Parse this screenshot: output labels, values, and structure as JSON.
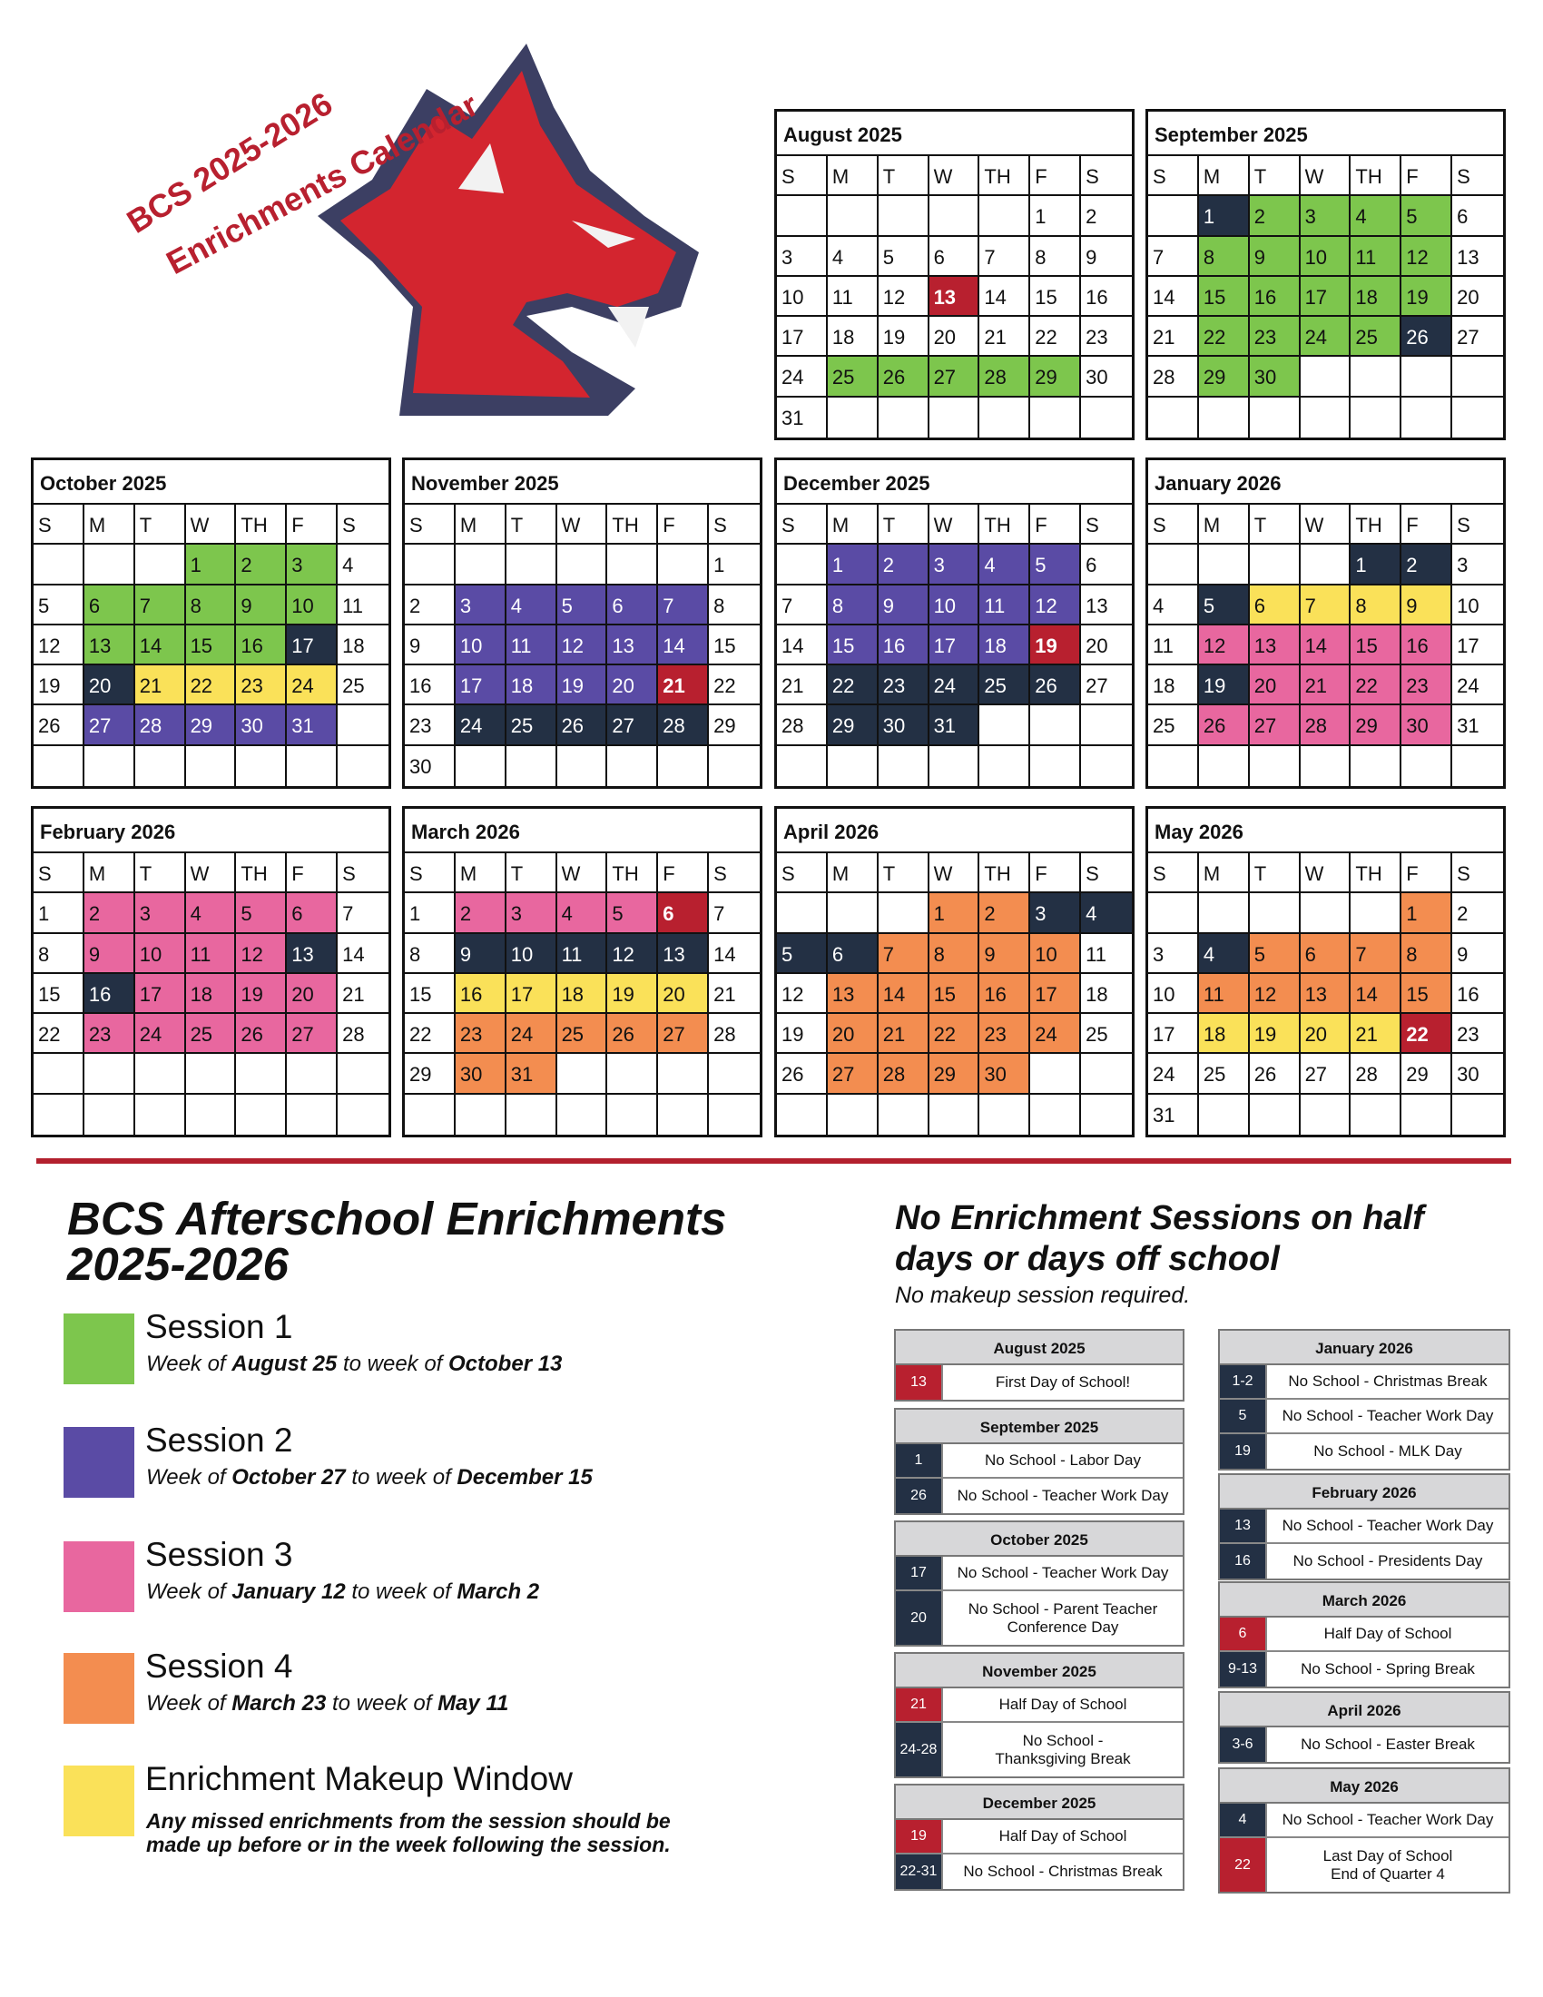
{
  "colors": {
    "green": "#7dc64d",
    "purple": "#5a4ba5",
    "pink": "#e8679f",
    "orange": "#f38d50",
    "yellow": "#fae159",
    "navy": "#233044",
    "red": "#b8202f",
    "logo_red": "#b8202f",
    "logo_navy": "#3c3f63"
  },
  "header": {
    "title_line1": "BCS 2025-2026",
    "title_line2": "Enrichments Calendar"
  },
  "calendars": [
    {
      "month": "August 2025",
      "days": [
        "S",
        "M",
        "T",
        "W",
        "TH",
        "F",
        "S"
      ],
      "start": 5,
      "length": 31,
      "colors": {
        "25": "green",
        "26": "green",
        "27": "green",
        "28": "green",
        "29": "green",
        "13": "red"
      }
    },
    {
      "month": "September 2025",
      "days": [
        "S",
        "M",
        "T",
        "W",
        "TH",
        "F",
        "S"
      ],
      "start": 1,
      "length": 30,
      "colors": {
        "1": "navy",
        "2": "green",
        "3": "green",
        "4": "green",
        "5": "green",
        "8": "green",
        "9": "green",
        "10": "green",
        "11": "green",
        "12": "green",
        "15": "green",
        "16": "green",
        "17": "green",
        "18": "green",
        "19": "green",
        "22": "green",
        "23": "green",
        "24": "green",
        "25": "green",
        "26": "navy",
        "29": "green",
        "30": "green"
      }
    },
    {
      "month": "October 2025",
      "days": [
        "S",
        "M",
        "T",
        "W",
        "TH",
        "F",
        "S"
      ],
      "start": 3,
      "length": 31,
      "colors": {
        "1": "green",
        "2": "green",
        "3": "green",
        "6": "green",
        "7": "green",
        "8": "green",
        "9": "green",
        "10": "green",
        "13": "green",
        "14": "green",
        "15": "green",
        "16": "green",
        "17": "navy",
        "20": "navy",
        "21": "yellow",
        "22": "yellow",
        "23": "yellow",
        "24": "yellow",
        "27": "purple",
        "28": "purple",
        "29": "purple",
        "30": "purple",
        "31": "purple"
      }
    },
    {
      "month": "November 2025",
      "days": [
        "S",
        "M",
        "T",
        "W",
        "TH",
        "F",
        "S"
      ],
      "start": 6,
      "length": 30,
      "colors": {
        "3": "purple",
        "4": "purple",
        "5": "purple",
        "6": "purple",
        "7": "purple",
        "10": "purple",
        "11": "purple",
        "12": "purple",
        "13": "purple",
        "14": "purple",
        "17": "purple",
        "18": "purple",
        "19": "purple",
        "20": "purple",
        "21": "red",
        "24": "navy",
        "25": "navy",
        "26": "navy",
        "27": "navy",
        "28": "navy"
      }
    },
    {
      "month": "December 2025",
      "days": [
        "S",
        "M",
        "T",
        "W",
        "TH",
        "F",
        "S"
      ],
      "start": 1,
      "length": 31,
      "colors": {
        "1": "purple",
        "2": "purple",
        "3": "purple",
        "4": "purple",
        "5": "purple",
        "8": "purple",
        "9": "purple",
        "10": "purple",
        "11": "purple",
        "12": "purple",
        "15": "purple",
        "16": "purple",
        "17": "purple",
        "18": "purple",
        "19": "red",
        "22": "navy",
        "23": "navy",
        "24": "navy",
        "25": "navy",
        "26": "navy",
        "29": "navy",
        "30": "navy",
        "31": "navy"
      }
    },
    {
      "month": "January 2026",
      "days": [
        "S",
        "M",
        "T",
        "W",
        "TH",
        "F",
        "S"
      ],
      "start": 4,
      "length": 31,
      "colors": {
        "1": "navy",
        "2": "navy",
        "5": "navy",
        "6": "yellow",
        "7": "yellow",
        "8": "yellow",
        "9": "yellow",
        "12": "pink",
        "13": "pink",
        "14": "pink",
        "15": "pink",
        "16": "pink",
        "19": "navy",
        "20": "pink",
        "21": "pink",
        "22": "pink",
        "23": "pink",
        "26": "pink",
        "27": "pink",
        "28": "pink",
        "29": "pink",
        "30": "pink"
      }
    },
    {
      "month": "February 2026",
      "days": [
        "S",
        "M",
        "T",
        "W",
        "TH",
        "F",
        "S"
      ],
      "start": 0,
      "length": 28,
      "colors": {
        "2": "pink",
        "3": "pink",
        "4": "pink",
        "5": "pink",
        "6": "pink",
        "9": "pink",
        "10": "pink",
        "11": "pink",
        "12": "pink",
        "13": "navy",
        "16": "navy",
        "17": "pink",
        "18": "pink",
        "19": "pink",
        "20": "pink",
        "23": "pink",
        "24": "pink",
        "25": "pink",
        "26": "pink",
        "27": "pink"
      }
    },
    {
      "month": "March 2026",
      "days": [
        "S",
        "M",
        "T",
        "W",
        "TH",
        "F",
        "S"
      ],
      "start": 0,
      "length": 31,
      "colors": {
        "2": "pink",
        "3": "pink",
        "4": "pink",
        "5": "pink",
        "6": "red",
        "9": "navy",
        "10": "navy",
        "11": "navy",
        "12": "navy",
        "13": "navy",
        "16": "yellow",
        "17": "yellow",
        "18": "yellow",
        "19": "yellow",
        "20": "yellow",
        "23": "orange",
        "24": "orange",
        "25": "orange",
        "26": "orange",
        "27": "orange",
        "30": "orange",
        "31": "orange"
      }
    },
    {
      "month": "April 2026",
      "days": [
        "S",
        "M",
        "T",
        "W",
        "TH",
        "F",
        "S"
      ],
      "start": 3,
      "length": 30,
      "colors": {
        "1": "orange",
        "2": "orange",
        "3": "navy",
        "4": "navy",
        "5": "navy",
        "6": "navy",
        "7": "orange",
        "8": "orange",
        "9": "orange",
        "10": "orange",
        "13": "orange",
        "14": "orange",
        "15": "orange",
        "16": "orange",
        "17": "orange",
        "20": "orange",
        "21": "orange",
        "22": "orange",
        "23": "orange",
        "24": "orange",
        "27": "orange",
        "28": "orange",
        "29": "orange",
        "30": "orange"
      }
    },
    {
      "month": "May 2026",
      "days": [
        "S",
        "M",
        "T",
        "W",
        "TH",
        "F",
        "S"
      ],
      "start": 5,
      "length": 31,
      "colors": {
        "1": "orange",
        "4": "navy",
        "5": "orange",
        "6": "orange",
        "7": "orange",
        "8": "orange",
        "11": "orange",
        "12": "orange",
        "13": "orange",
        "14": "orange",
        "15": "orange",
        "18": "yellow",
        "19": "yellow",
        "20": "yellow",
        "21": "yellow",
        "22": "red"
      }
    }
  ],
  "legend": {
    "title": "BCS Afterschool Enrichments 2025-2026",
    "items": [
      {
        "color": "green",
        "name": "Session 1",
        "p1": "Week of ",
        "b1": "August 25",
        "p2": " to week of ",
        "b2": "October 13"
      },
      {
        "color": "purple",
        "name": "Session 2",
        "p1": "Week of ",
        "b1": "October 27",
        "p2": " to week of ",
        "b2": "December 15"
      },
      {
        "color": "pink",
        "name": "Session 3",
        "p1": "Week of ",
        "b1": "January 12",
        "p2": " to week of ",
        "b2": "March 2"
      },
      {
        "color": "orange",
        "name": "Session 4",
        "p1": "Week of ",
        "b1": "March 23",
        "p2": " to week of ",
        "b2": "May 11"
      },
      {
        "color": "yellow",
        "name": "Enrichment Makeup Window"
      }
    ],
    "makeup_note": "Any missed enrichments from the session should be made up before or in the week following the session."
  },
  "no_enrichment": {
    "title": "No Enrichment Sessions on half days or days off school",
    "subtitle": "No makeup session required.",
    "columns": [
      [
        {
          "month": "August 2025",
          "rows": [
            {
              "date": "13",
              "text": "First Day of School!",
              "color": "red"
            }
          ]
        },
        {
          "month": "September 2025",
          "rows": [
            {
              "date": "1",
              "text": "No School - Labor Day",
              "color": "navy"
            },
            {
              "date": "26",
              "text": "No School - Teacher Work Day",
              "color": "navy"
            }
          ]
        },
        {
          "month": "October 2025",
          "rows": [
            {
              "date": "17",
              "text": "No School - Teacher Work Day",
              "color": "navy"
            },
            {
              "date": "20",
              "text": "No School - Parent Teacher\nConference Day",
              "color": "navy",
              "tall": true
            }
          ]
        },
        {
          "month": "November 2025",
          "rows": [
            {
              "date": "21",
              "text": "Half Day of School",
              "color": "red"
            },
            {
              "date": "24-28",
              "text": "No School -\nThanksgiving Break",
              "color": "navy",
              "tall": true
            }
          ]
        },
        {
          "month": "December 2025",
          "rows": [
            {
              "date": "19",
              "text": "Half Day of School",
              "color": "red"
            },
            {
              "date": "22-31",
              "text": "No School - Christmas Break",
              "color": "navy"
            }
          ]
        }
      ],
      [
        {
          "month": "January 2026",
          "rows": [
            {
              "date": "1-2",
              "text": "No School - Christmas Break",
              "color": "navy"
            },
            {
              "date": "5",
              "text": "No School - Teacher Work Day",
              "color": "navy"
            },
            {
              "date": "19",
              "text": "No School - MLK Day",
              "color": "navy"
            }
          ]
        },
        {
          "month": "February 2026",
          "rows": [
            {
              "date": "13",
              "text": "No School - Teacher Work Day",
              "color": "navy"
            },
            {
              "date": "16",
              "text": "No School - Presidents Day",
              "color": "navy"
            }
          ]
        },
        {
          "month": "March 2026",
          "rows": [
            {
              "date": "6",
              "text": "Half Day of School",
              "color": "red"
            },
            {
              "date": "9-13",
              "text": "No School - Spring Break",
              "color": "navy"
            }
          ]
        },
        {
          "month": "April 2026",
          "rows": [
            {
              "date": "3-6",
              "text": "No School - Easter Break",
              "color": "navy"
            }
          ]
        },
        {
          "month": "May 2026",
          "rows": [
            {
              "date": "4",
              "text": "No School - Teacher Work Day",
              "color": "navy"
            },
            {
              "date": "22",
              "text": "Last Day of School\nEnd of Quarter 4",
              "color": "red",
              "tall": true
            }
          ]
        }
      ]
    ]
  }
}
